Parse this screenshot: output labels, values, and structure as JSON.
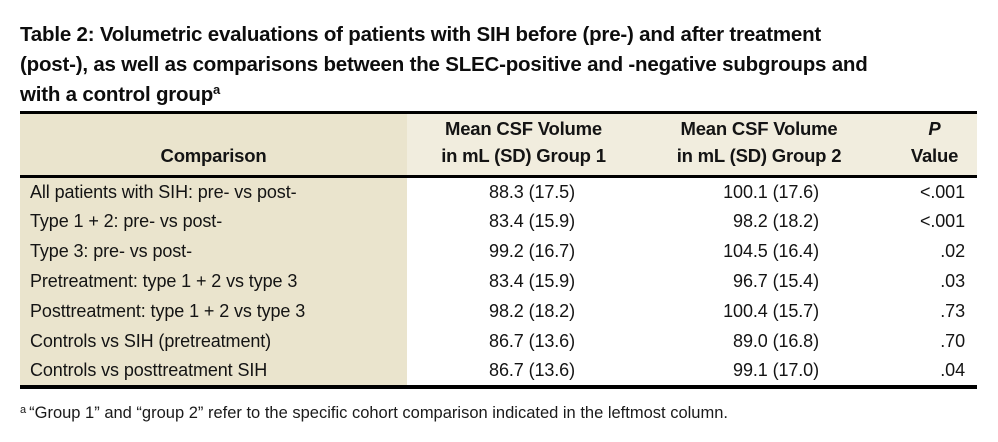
{
  "caption": {
    "line1": "Table 2: Volumetric evaluations of patients with SIH before (pre-) and after treatment",
    "line2": "(post-), as well as comparisons between the SLEC-positive and -negative subgroups and",
    "line3": "with a control group",
    "footnote_marker": "a"
  },
  "table": {
    "columns": [
      {
        "label": "Comparison"
      },
      {
        "label_line1": "Mean CSF Volume",
        "label_line2": "in mL (SD) Group 1"
      },
      {
        "label_line1": "Mean CSF Volume",
        "label_line2": "in mL (SD) Group 2"
      },
      {
        "label_line1": "P",
        "label_line2": "Value"
      }
    ],
    "rows": [
      {
        "comparison": "All patients with SIH: pre- vs post-",
        "group1": "88.3 (17.5)",
        "group2": "100.1 (17.6)",
        "p_value": "<.001"
      },
      {
        "comparison": "Type 1 + 2: pre- vs post-",
        "group1": "83.4 (15.9)",
        "group2": "98.2 (18.2)",
        "p_value": "<.001"
      },
      {
        "comparison": "Type 3: pre- vs post-",
        "group1": "99.2 (16.7)",
        "group2": "104.5 (16.4)",
        "p_value": ".02"
      },
      {
        "comparison": "Pretreatment: type 1 + 2 vs type 3",
        "group1": "83.4 (15.9)",
        "group2": "96.7 (15.4)",
        "p_value": ".03"
      },
      {
        "comparison": "Posttreatment: type 1 + 2 vs type 3",
        "group1": "98.2 (18.2)",
        "group2": "100.4 (15.7)",
        "p_value": ".73"
      },
      {
        "comparison": "Controls vs SIH (pretreatment)",
        "group1": "86.7 (13.6)",
        "group2": "89.0 (16.8)",
        "p_value": ".70"
      },
      {
        "comparison": "Controls vs posttreatment SIH",
        "group1": "86.7 (13.6)",
        "group2": "99.1 (17.0)",
        "p_value": ".04"
      }
    ]
  },
  "footnote": {
    "marker": "a",
    "text": "“Group 1” and “group 2” refer to the specific cohort comparison indicated in the leftmost column."
  },
  "colors": {
    "header_bg": "#f1edde",
    "first_col_bg": "#eae4cd",
    "border": "#000000",
    "text": "#141414"
  }
}
